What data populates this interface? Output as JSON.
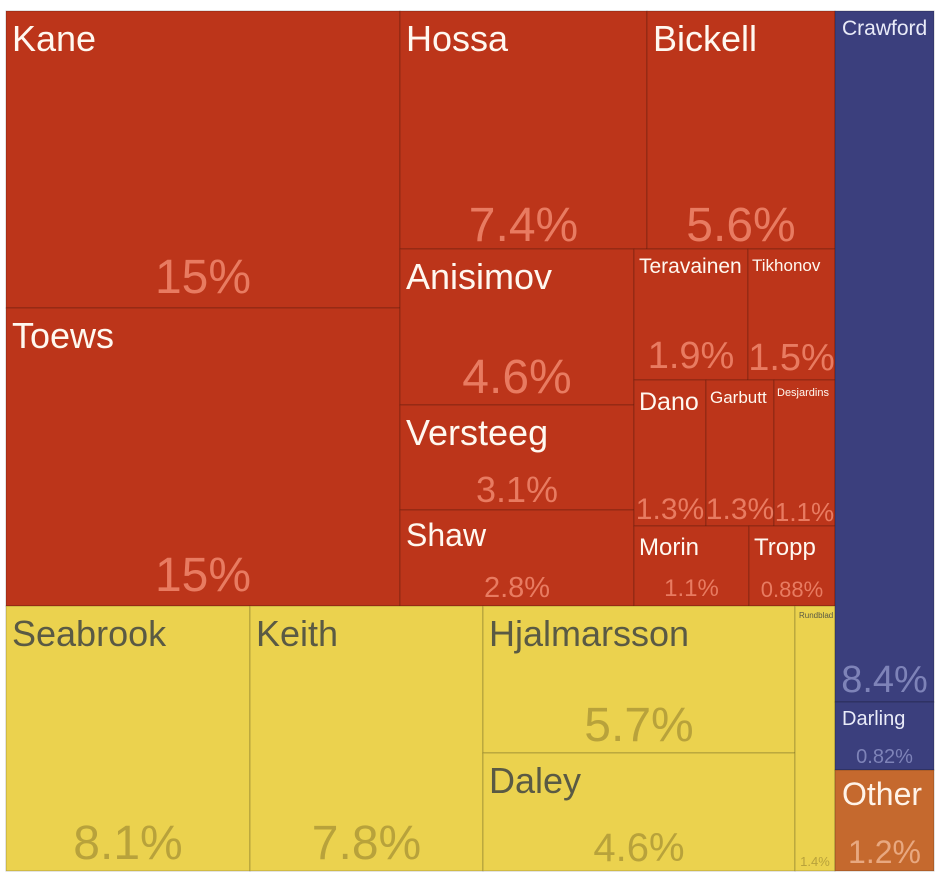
{
  "chart_data": {
    "type": "treemap",
    "title": "",
    "groups": [
      {
        "name": "forwards",
        "color": "#BC351A",
        "label_color": "#FFF8F0",
        "pct_color": "#E87B61"
      },
      {
        "name": "defense",
        "color": "#EBD24E",
        "label_color": "#5A5A44",
        "pct_color": "#B8A23B"
      },
      {
        "name": "goalies",
        "color": "#3B3F7D",
        "label_color": "#E9EBF8",
        "pct_color": "#7E83B8"
      },
      {
        "name": "other",
        "color": "#C5692E",
        "label_color": "#FFF3E8",
        "pct_color": "#E8A880"
      }
    ],
    "items": [
      {
        "name": "Kane",
        "value_label": "15%",
        "group": "forwards"
      },
      {
        "name": "Toews",
        "value_label": "15%",
        "group": "forwards"
      },
      {
        "name": "Hossa",
        "value_label": "7.4%",
        "group": "forwards"
      },
      {
        "name": "Bickell",
        "value_label": "5.6%",
        "group": "forwards"
      },
      {
        "name": "Anisimov",
        "value_label": "4.6%",
        "group": "forwards"
      },
      {
        "name": "Versteeg",
        "value_label": "3.1%",
        "group": "forwards"
      },
      {
        "name": "Shaw",
        "value_label": "2.8%",
        "group": "forwards"
      },
      {
        "name": "Teravainen",
        "value_label": "1.9%",
        "group": "forwards"
      },
      {
        "name": "Tikhonov",
        "value_label": "1.5%",
        "group": "forwards"
      },
      {
        "name": "Dano",
        "value_label": "1.3%",
        "group": "forwards"
      },
      {
        "name": "Garbutt",
        "value_label": "1.3%",
        "group": "forwards"
      },
      {
        "name": "Desjardins",
        "value_label": "1.1%",
        "group": "forwards"
      },
      {
        "name": "Morin",
        "value_label": "1.1%",
        "group": "forwards"
      },
      {
        "name": "Tropp",
        "value_label": "0.88%",
        "group": "forwards"
      },
      {
        "name": "Seabrook",
        "value_label": "8.1%",
        "group": "defense"
      },
      {
        "name": "Keith",
        "value_label": "7.8%",
        "group": "defense"
      },
      {
        "name": "Hjalmarsson",
        "value_label": "5.7%",
        "group": "defense"
      },
      {
        "name": "Daley",
        "value_label": "4.6%",
        "group": "defense"
      },
      {
        "name": "Rundblad",
        "value_label": "1.4%",
        "group": "defense"
      },
      {
        "name": "Crawford",
        "value_label": "8.4%",
        "group": "goalies"
      },
      {
        "name": "Darling",
        "value_label": "0.82%",
        "group": "goalies"
      },
      {
        "name": "Other",
        "value_label": "1.2%",
        "group": "other"
      }
    ]
  }
}
